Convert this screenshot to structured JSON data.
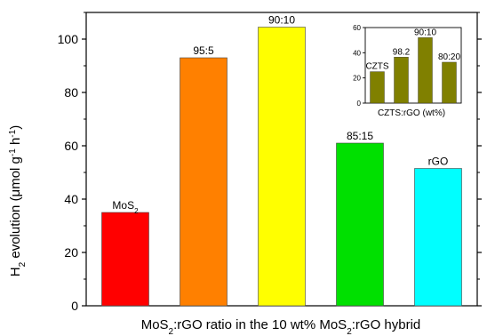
{
  "chart_data": [
    {
      "type": "bar",
      "categories": [
        "MoS2",
        "95:5",
        "90:10",
        "85:15",
        "rGO"
      ],
      "bar_labels": [
        {
          "main": "MoS",
          "sub": "2",
          "tail": ""
        },
        {
          "main": "95:5",
          "sub": "",
          "tail": ""
        },
        {
          "main": "90:10",
          "sub": "",
          "tail": ""
        },
        {
          "main": "85:15",
          "sub": "",
          "tail": ""
        },
        {
          "main": "rGO",
          "sub": "",
          "tail": ""
        }
      ],
      "values": [
        35,
        93,
        104.5,
        61,
        51.5
      ],
      "colors": [
        "#ff0000",
        "#ff8000",
        "#ffff00",
        "#00e000",
        "#00ffff"
      ],
      "ylim": [
        0,
        110
      ],
      "yticks": [
        "0",
        "20",
        "40",
        "60",
        "80",
        "100"
      ],
      "ylabel": {
        "p1": "H",
        "sub1": "2",
        "p2": " evolution (μmol g",
        "sup1": "-1",
        "p3": " h",
        "sup2": "-1",
        "p4": ")"
      },
      "xlabel": {
        "p1": "MoS",
        "sub1": "2",
        "p2": ":rGO ratio in the 10 wt% MoS",
        "sub2": "2",
        "p3": ":rGO hybrid"
      }
    },
    {
      "type": "bar",
      "categories": [
        "CZTS",
        "98.2",
        "90:10",
        "80:20"
      ],
      "values": [
        25,
        36.5,
        52,
        32.5
      ],
      "colors": [
        "#808000",
        "#808000",
        "#808000",
        "#808000"
      ],
      "ylim": [
        0,
        60
      ],
      "yticks": [
        "0",
        "20",
        "40",
        "60"
      ],
      "xlabel": "CZTS:rGO (wt%)"
    }
  ]
}
